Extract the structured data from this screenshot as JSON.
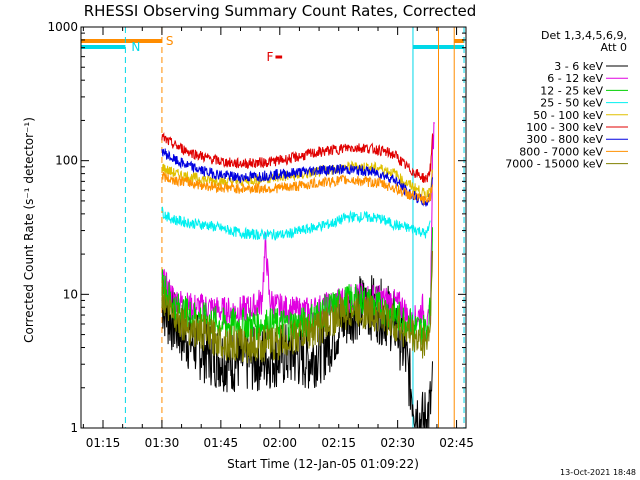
{
  "chart_data": {
    "type": "line",
    "title": "RHESSI Observing Summary Count Rates, Corrected",
    "xlabel": "Start Time (12-Jan-05 01:09:22)",
    "ylabel": "Corrected Count Rate (s⁻¹ detector⁻¹)",
    "yscale": "log",
    "ylim": [
      1,
      1000
    ],
    "xlim_minutes": [
      0,
      98
    ],
    "x_ticks": [
      {
        "label": "01:15",
        "min": 5.6
      },
      {
        "label": "01:30",
        "min": 20.6
      },
      {
        "label": "01:45",
        "min": 35.6
      },
      {
        "label": "02:00",
        "min": 50.6
      },
      {
        "label": "02:15",
        "min": 65.6
      },
      {
        "label": "02:30",
        "min": 80.6
      },
      {
        "label": "02:45",
        "min": 95.6
      }
    ],
    "y_ticks": [
      {
        "label": "1",
        "v": 1
      },
      {
        "label": "10",
        "v": 10
      },
      {
        "label": "100",
        "v": 100
      },
      {
        "label": "1000",
        "v": 1000
      }
    ],
    "legend_header": [
      "Det 1,3,4,5,6,9,",
      "Att 0"
    ],
    "legend_placement": "right",
    "series": [
      {
        "name": "3 - 6 keV",
        "color": "#000000",
        "x": [
          20.6,
          22,
          24,
          26,
          28,
          30,
          34,
          38,
          42,
          46,
          50,
          54,
          58,
          62,
          66,
          70,
          74,
          78,
          80,
          81,
          82,
          83,
          84,
          85,
          86,
          87,
          88,
          89,
          89.5
        ],
        "y": [
          9,
          7,
          6,
          5,
          4.5,
          4,
          3.5,
          3.2,
          3.2,
          3.3,
          3.5,
          3.5,
          3.3,
          4,
          6,
          8,
          8,
          7,
          6,
          5,
          4,
          3,
          2,
          1.5,
          1.2,
          1.1,
          1.2,
          1.5,
          2
        ]
      },
      {
        "name": "6 - 12 keV",
        "color": "#e000e0",
        "x": [
          20.6,
          22,
          24,
          28,
          32,
          36,
          40,
          44,
          46,
          47,
          48,
          50,
          54,
          58,
          62,
          66,
          70,
          74,
          78,
          80,
          82,
          84,
          86,
          87,
          88,
          89,
          89.5,
          90
        ],
        "y": [
          13,
          11,
          9,
          8,
          8,
          7.5,
          7.5,
          8,
          9,
          24,
          9,
          8,
          7.5,
          7.5,
          8,
          9,
          9.5,
          9.5,
          9,
          8.5,
          8,
          6,
          7,
          8,
          5,
          8,
          140,
          160
        ]
      },
      {
        "name": "12 - 25 keV",
        "color": "#00d000",
        "x": [
          20.6,
          22,
          24,
          28,
          32,
          36,
          40,
          44,
          48,
          52,
          56,
          60,
          64,
          68,
          72,
          76,
          80,
          82,
          84,
          86,
          88,
          89,
          89.5
        ],
        "y": [
          13,
          10,
          8,
          7,
          6.5,
          6,
          6,
          6,
          6,
          6,
          6,
          7,
          8,
          9,
          9,
          8,
          7,
          6.5,
          6,
          5.5,
          5.5,
          8,
          40
        ]
      },
      {
        "name": "25 - 50 keV",
        "color": "#00f0f0",
        "x": [
          20.6,
          22,
          24,
          28,
          32,
          36,
          40,
          44,
          48,
          52,
          56,
          60,
          64,
          68,
          72,
          76,
          80,
          82,
          84,
          86,
          88,
          89
        ],
        "y": [
          42,
          38,
          36,
          34,
          33,
          31,
          29,
          28,
          28,
          28,
          30,
          32,
          34,
          38,
          38,
          37,
          33,
          32,
          31,
          30,
          28,
          35
        ]
      },
      {
        "name": "50 - 100 keV",
        "color": "#e0c000",
        "x": [
          20.6,
          22,
          24,
          28,
          32,
          36,
          40,
          44,
          48,
          52,
          56,
          60,
          64,
          68,
          72,
          76,
          80,
          82,
          84,
          86,
          88,
          89,
          89.5
        ],
        "y": [
          90,
          85,
          80,
          75,
          72,
          70,
          70,
          72,
          74,
          76,
          78,
          82,
          86,
          90,
          90,
          88,
          80,
          70,
          65,
          60,
          55,
          65,
          85
        ]
      },
      {
        "name": "100 - 300 keV",
        "color": "#e00000",
        "x": [
          20.6,
          22,
          24,
          28,
          32,
          36,
          40,
          44,
          48,
          52,
          56,
          60,
          64,
          68,
          72,
          76,
          80,
          82,
          84,
          86,
          88,
          89,
          89.5
        ],
        "y": [
          150,
          140,
          130,
          115,
          105,
          98,
          95,
          96,
          98,
          102,
          108,
          115,
          120,
          125,
          125,
          120,
          110,
          95,
          85,
          78,
          72,
          90,
          150
        ]
      },
      {
        "name": "300 - 800 keV",
        "color": "#0000e0",
        "x": [
          20.6,
          22,
          24,
          28,
          32,
          36,
          40,
          44,
          48,
          52,
          56,
          60,
          64,
          68,
          72,
          76,
          80,
          82,
          84,
          86,
          88,
          89,
          89.5
        ],
        "y": [
          120,
          110,
          100,
          90,
          82,
          78,
          75,
          76,
          78,
          80,
          82,
          85,
          86,
          86,
          84,
          80,
          72,
          62,
          56,
          52,
          48,
          55,
          80
        ]
      },
      {
        "name": "800 - 7000 keV",
        "color": "#ff9000",
        "x": [
          20.6,
          22,
          24,
          28,
          32,
          36,
          40,
          44,
          48,
          52,
          56,
          60,
          64,
          68,
          72,
          76,
          80,
          82,
          84,
          86,
          88,
          89,
          89.5
        ],
        "y": [
          78,
          74,
          72,
          68,
          65,
          63,
          62,
          62,
          62,
          63,
          65,
          68,
          70,
          72,
          70,
          68,
          62,
          58,
          55,
          52,
          50,
          55,
          70
        ]
      },
      {
        "name": "7000 - 15000 keV",
        "color": "#808000",
        "x": [
          20.6,
          22,
          24,
          28,
          32,
          36,
          40,
          44,
          48,
          52,
          56,
          60,
          64,
          68,
          72,
          76,
          80,
          82,
          84,
          86,
          88,
          89,
          89.5
        ],
        "y": [
          10,
          8,
          7,
          5.5,
          5,
          4.5,
          4.2,
          4.2,
          4.3,
          4.5,
          5,
          5.5,
          6.5,
          7.5,
          7.5,
          7,
          6,
          5.5,
          5,
          4.5,
          4.5,
          6,
          30
        ]
      }
    ],
    "annotations": [
      {
        "label": "N",
        "color": "#00d8e8",
        "x_min": 11.3
      },
      {
        "label": "S",
        "color": "#ff8c00",
        "x_min": 20.6
      },
      {
        "label": "F",
        "color": "#e00000",
        "x_min": 48.5
      }
    ],
    "status_bars": [
      {
        "color": "#00d8e8",
        "from_min": 0,
        "to_min": 11.3,
        "level": "upper"
      },
      {
        "color": "#ff8c00",
        "from_min": 0,
        "to_min": 20.6,
        "level": "top"
      },
      {
        "color": "#00d8e8",
        "from_min": 84.5,
        "to_min": 97.5,
        "level": "upper"
      },
      {
        "color": "#ff8c00",
        "from_min": 95.0,
        "to_min": 97.5,
        "level": "top"
      },
      {
        "color": "#e00000",
        "from_min": 49.5,
        "to_min": 51.2,
        "level": "flag"
      }
    ],
    "vlines": [
      {
        "color": "#00d8e8",
        "min": 0,
        "style": "solid"
      },
      {
        "color": "#00d8e8",
        "min": 11.3,
        "style": "dashed"
      },
      {
        "color": "#ff8c00",
        "min": 20.6,
        "style": "dashed"
      },
      {
        "color": "#00d8e8",
        "min": 84.5,
        "style": "solid"
      },
      {
        "color": "#ff8c00",
        "min": 91.0,
        "style": "solid"
      },
      {
        "color": "#ff8c00",
        "min": 95.0,
        "style": "solid"
      },
      {
        "color": "#00d8e8",
        "min": 97.5,
        "style": "dashed"
      }
    ],
    "grid": false,
    "timestamp": "13-Oct-2021 18:48"
  }
}
